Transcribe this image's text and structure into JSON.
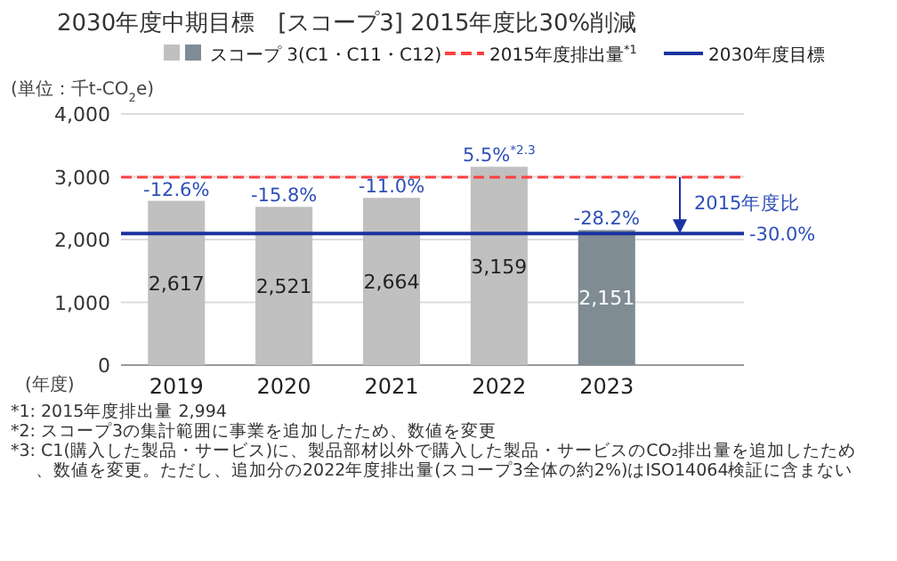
{
  "chart_data": {
    "type": "bar",
    "title": "2030年度中期目標　[スコープ3] 2015年度比30%削減",
    "xlabel": "(年度)",
    "ylabel": "(単位：千t-CO$_{2}$e)",
    "categories": [
      "2019",
      "2020",
      "2021",
      "2022",
      "2023"
    ],
    "series": [
      {
        "name": "スコープ 3(C1・C11・C12)",
        "colors": [
          "#c0c0c0",
          "#c0c0c0",
          "#c0c0c0",
          "#c0c0c0",
          "#7f8c94"
        ],
        "values": [
          2617,
          2521,
          2664,
          3159,
          2151
        ],
        "value_labels": [
          "2,617",
          "2,521",
          "2,664",
          "3,159",
          "2,151"
        ]
      }
    ],
    "ylim": [
      0,
      4000
    ],
    "yticks": [
      {
        "value": 0,
        "label": "0"
      },
      {
        "value": 1000,
        "label": "1,000"
      },
      {
        "value": 2000,
        "label": "2,000"
      },
      {
        "value": 3000,
        "label": "3,000"
      },
      {
        "value": 4000,
        "label": "4,000"
      }
    ],
    "grid": "y",
    "legend": "top",
    "ref_lines": [
      {
        "axis": "y",
        "value": 2994,
        "label": "2015年度排出量$^{*1}$",
        "color": "#ff4040",
        "line_style": "dashed"
      },
      {
        "axis": "y",
        "value": 2096,
        "label": "2030年度目標",
        "color": "#1a33a0",
        "line_style": "solid"
      }
    ],
    "annotations": [
      {
        "text": "-12.6%",
        "x": "2019",
        "y": 2617
      },
      {
        "text": "-15.8%",
        "x": "2020",
        "y": 2521
      },
      {
        "text": "-11.0%",
        "x": "2021",
        "y": 2664
      },
      {
        "text": "5.5%$^{*2.3}$",
        "x": "2022",
        "y": 3159
      },
      {
        "text": "-28.2%",
        "x": "2023",
        "y": 2151
      },
      "2015年度比",
      "-30.0%",
      "*1: 2015年度排出量 2,994",
      "*2: スコープ3の集計範囲に事業を追加したため、数値を変更",
      "*3: C1(購入した製品・サービス)に、製品部材以外で購入した製品・サービスのCO₂排出量を追加したため、数値を変更。ただし、追加分の2022年度排出量(スコープ3全体の約2%)はISO14064検証に含まない"
    ]
  }
}
